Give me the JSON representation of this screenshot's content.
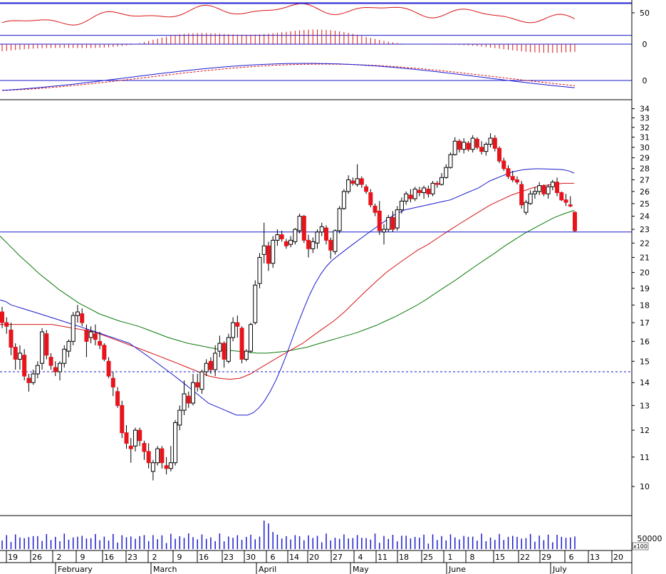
{
  "chart_data": {
    "type": "candlestick",
    "colors": {
      "up_candle": "#ffffff",
      "down_candle": "#e8141c",
      "candle_outline": "#000000",
      "ma_short": "#1a1ad0",
      "ma_mid": "#d81414",
      "ma_long": "#0a7a0a",
      "hline": "#1a1ad0",
      "rsi_line": "#d81414",
      "osc_bars": "#d81414",
      "macd_line": "#1a1ad0",
      "macd_signal": "#d81414",
      "volume": "#1a1ad0"
    },
    "panels": {
      "rsi": {
        "tick_labels": [
          "50"
        ],
        "upper": 62,
        "lower": 30
      },
      "oscillator": {
        "tick_labels": [
          "0"
        ]
      },
      "macd": {
        "tick_labels": [
          "0"
        ]
      },
      "price": {
        "scale": "log",
        "ylim": [
          9.1,
          35
        ],
        "tick_labels": [
          "10",
          "11",
          "12",
          "13",
          "14",
          "15",
          "16",
          "17",
          "18",
          "19",
          "20",
          "21",
          "22",
          "23",
          "24",
          "25",
          "26",
          "27",
          "28",
          "29",
          "30",
          "31",
          "32",
          "33",
          "34"
        ],
        "hlines": [
          22.8
        ],
        "dashed_hlines": [
          14.5
        ]
      },
      "volume": {
        "tick_labels": [
          "50000"
        ],
        "unit_label": "x100"
      }
    },
    "x_axis": {
      "day_labels": [
        "19",
        "26",
        "2",
        "9",
        "16",
        "23",
        "2",
        "9",
        "16",
        "23",
        "30",
        "6",
        "14",
        "20",
        "27",
        "4",
        "11",
        "18",
        "25",
        "1",
        "8",
        "15",
        "22",
        "29",
        "6",
        "13",
        "20"
      ],
      "month_labels": [
        "February",
        "March",
        "April",
        "May",
        "June",
        "July"
      ]
    },
    "candles": [
      [
        17.6,
        17.9,
        16.7,
        17.0
      ],
      [
        17.0,
        17.3,
        16.4,
        16.8
      ],
      [
        16.6,
        17.0,
        15.3,
        15.7
      ],
      [
        15.7,
        15.9,
        14.6,
        15.1
      ],
      [
        15.1,
        15.8,
        14.6,
        15.4
      ],
      [
        15.3,
        15.6,
        14.1,
        14.3
      ],
      [
        14.2,
        14.4,
        13.6,
        14.0
      ],
      [
        14.0,
        14.6,
        13.9,
        14.4
      ],
      [
        14.4,
        15.0,
        14.2,
        14.8
      ],
      [
        14.9,
        16.7,
        14.6,
        16.5
      ],
      [
        16.4,
        16.6,
        15.1,
        15.3
      ],
      [
        15.2,
        15.4,
        14.6,
        14.8
      ],
      [
        14.7,
        15.0,
        14.3,
        14.5
      ],
      [
        14.5,
        15.0,
        14.1,
        14.9
      ],
      [
        14.9,
        15.8,
        14.7,
        15.6
      ],
      [
        15.5,
        16.1,
        15.2,
        16.0
      ],
      [
        16.0,
        17.6,
        15.8,
        17.4
      ],
      [
        17.4,
        18.0,
        17.0,
        17.6
      ],
      [
        17.5,
        17.8,
        16.8,
        17.0
      ],
      [
        16.6,
        16.9,
        15.2,
        16.0
      ],
      [
        16.2,
        16.8,
        15.9,
        16.5
      ],
      [
        16.4,
        16.9,
        15.8,
        16.1
      ],
      [
        16.0,
        16.5,
        15.6,
        15.8
      ],
      [
        15.8,
        15.9,
        15.0,
        15.1
      ],
      [
        15.0,
        15.2,
        14.2,
        14.3
      ],
      [
        14.2,
        14.5,
        13.4,
        13.8
      ],
      [
        13.6,
        13.8,
        12.9,
        13.0
      ],
      [
        13.0,
        13.2,
        11.7,
        11.9
      ],
      [
        11.9,
        12.2,
        11.3,
        11.5
      ],
      [
        11.4,
        11.7,
        10.8,
        11.3
      ],
      [
        11.4,
        12.1,
        11.2,
        12.0
      ],
      [
        12.0,
        12.1,
        11.4,
        11.6
      ],
      [
        11.5,
        11.6,
        10.9,
        11.2
      ],
      [
        11.2,
        11.5,
        10.6,
        10.8
      ],
      [
        10.5,
        10.9,
        10.2,
        10.8
      ],
      [
        10.8,
        11.4,
        10.7,
        11.3
      ],
      [
        11.3,
        11.4,
        10.6,
        10.8
      ],
      [
        10.7,
        11.0,
        10.4,
        10.6
      ],
      [
        10.6,
        11.4,
        10.5,
        10.8
      ],
      [
        10.8,
        12.4,
        10.7,
        12.3
      ],
      [
        12.2,
        13.0,
        12.0,
        12.8
      ],
      [
        12.8,
        14.1,
        12.6,
        13.5
      ],
      [
        13.4,
        13.6,
        12.9,
        13.1
      ],
      [
        13.1,
        14.4,
        13.0,
        14.0
      ],
      [
        14.0,
        14.4,
        13.6,
        13.8
      ],
      [
        13.7,
        14.6,
        13.5,
        14.5
      ],
      [
        14.5,
        15.1,
        14.3,
        14.9
      ],
      [
        15.0,
        15.2,
        14.4,
        14.6
      ],
      [
        14.6,
        15.8,
        14.3,
        15.4
      ],
      [
        15.5,
        16.3,
        15.2,
        15.9
      ],
      [
        15.9,
        16.0,
        14.7,
        15.1
      ],
      [
        15.0,
        16.4,
        14.9,
        16.2
      ],
      [
        16.2,
        17.3,
        16.0,
        17.0
      ],
      [
        17.0,
        17.4,
        16.2,
        16.8
      ],
      [
        16.7,
        16.8,
        14.9,
        15.1
      ],
      [
        15.1,
        15.6,
        15.0,
        15.5
      ],
      [
        15.5,
        17.0,
        15.4,
        16.9
      ],
      [
        17.0,
        19.5,
        16.9,
        19.2
      ],
      [
        19.3,
        21.3,
        19.0,
        21.0
      ],
      [
        21.2,
        23.5,
        20.6,
        21.8
      ],
      [
        21.8,
        22.1,
        20.1,
        20.6
      ],
      [
        20.6,
        22.5,
        20.3,
        22.2
      ],
      [
        22.2,
        23.0,
        21.8,
        22.6
      ],
      [
        22.6,
        22.9,
        22.1,
        22.3
      ],
      [
        22.1,
        22.3,
        21.6,
        21.8
      ],
      [
        21.9,
        22.5,
        21.7,
        22.2
      ],
      [
        22.1,
        23.1,
        21.9,
        23.0
      ],
      [
        22.9,
        24.2,
        22.7,
        24.0
      ],
      [
        24.0,
        24.1,
        22.0,
        22.2
      ],
      [
        22.2,
        22.6,
        21.0,
        21.6
      ],
      [
        21.6,
        22.4,
        21.3,
        22.1
      ],
      [
        22.0,
        23.0,
        21.6,
        22.8
      ],
      [
        22.8,
        23.5,
        22.5,
        23.2
      ],
      [
        23.1,
        23.3,
        21.9,
        22.2
      ],
      [
        22.2,
        22.4,
        20.9,
        21.5
      ],
      [
        21.4,
        23.0,
        21.2,
        22.9
      ],
      [
        22.9,
        24.8,
        22.7,
        24.6
      ],
      [
        24.6,
        26.2,
        24.5,
        26.0
      ],
      [
        26.0,
        27.4,
        25.8,
        27.0
      ],
      [
        26.9,
        27.2,
        26.5,
        26.7
      ],
      [
        26.6,
        28.4,
        26.4,
        27.1
      ],
      [
        27.1,
        27.3,
        26.3,
        26.6
      ],
      [
        26.4,
        26.6,
        25.8,
        26.0
      ],
      [
        25.9,
        26.2,
        24.7,
        24.9
      ],
      [
        24.8,
        25.0,
        24.0,
        24.3
      ],
      [
        24.4,
        25.2,
        22.6,
        22.9
      ],
      [
        22.8,
        23.4,
        21.9,
        23.0
      ],
      [
        23.0,
        24.1,
        22.8,
        23.9
      ],
      [
        23.9,
        24.4,
        22.8,
        23.0
      ],
      [
        23.1,
        24.8,
        22.9,
        24.5
      ],
      [
        24.5,
        25.5,
        24.2,
        25.2
      ],
      [
        25.2,
        26.0,
        24.9,
        25.8
      ],
      [
        25.7,
        26.2,
        25.1,
        25.4
      ],
      [
        25.4,
        26.4,
        25.2,
        26.2
      ],
      [
        26.1,
        26.4,
        25.6,
        25.9
      ],
      [
        25.9,
        26.5,
        25.4,
        26.3
      ],
      [
        26.2,
        26.5,
        25.5,
        25.8
      ],
      [
        25.8,
        26.9,
        25.6,
        26.7
      ],
      [
        26.7,
        26.9,
        26.3,
        26.6
      ],
      [
        26.6,
        27.6,
        26.5,
        27.2
      ],
      [
        27.2,
        28.4,
        27.1,
        28.1
      ],
      [
        28.1,
        29.5,
        28.0,
        29.3
      ],
      [
        29.3,
        31.0,
        29.2,
        30.6
      ],
      [
        30.6,
        30.8,
        29.5,
        29.8
      ],
      [
        29.8,
        30.9,
        29.4,
        30.5
      ],
      [
        30.4,
        30.6,
        29.6,
        29.8
      ],
      [
        29.8,
        31.2,
        29.5,
        30.9
      ],
      [
        30.8,
        31.0,
        29.8,
        30.0
      ],
      [
        30.0,
        30.6,
        29.3,
        29.6
      ],
      [
        29.6,
        30.5,
        29.2,
        30.3
      ],
      [
        30.3,
        31.4,
        30.0,
        30.9
      ],
      [
        30.9,
        31.2,
        29.6,
        29.9
      ],
      [
        29.9,
        30.1,
        28.5,
        28.7
      ],
      [
        28.7,
        29.0,
        27.8,
        28.0
      ],
      [
        28.0,
        28.3,
        27.1,
        27.3
      ],
      [
        27.3,
        27.8,
        26.8,
        27.0
      ],
      [
        27.0,
        27.3,
        26.6,
        26.8
      ],
      [
        26.6,
        26.9,
        24.6,
        24.9
      ],
      [
        24.3,
        25.3,
        24.1,
        25.1
      ],
      [
        25.0,
        26.1,
        24.9,
        25.8
      ],
      [
        25.8,
        26.4,
        25.4,
        26.0
      ],
      [
        26.0,
        26.8,
        25.7,
        26.5
      ],
      [
        26.5,
        26.6,
        25.6,
        25.8
      ],
      [
        25.8,
        26.6,
        25.4,
        26.4
      ],
      [
        26.4,
        27.0,
        26.1,
        26.8
      ],
      [
        26.8,
        27.2,
        25.6,
        25.9
      ],
      [
        25.9,
        26.0,
        25.2,
        25.3
      ],
      [
        25.3,
        25.8,
        24.8,
        25.1
      ],
      [
        24.9,
        25.6,
        24.7,
        24.8
      ],
      [
        24.3,
        24.4,
        22.8,
        22.9
      ]
    ],
    "ma_short": [
      18.3,
      18.2,
      18.0,
      17.9,
      17.8,
      17.7,
      17.6,
      17.5,
      17.4,
      17.3,
      17.2,
      17.1,
      17.0,
      16.9,
      16.8,
      16.7,
      16.6,
      16.5,
      16.4,
      16.3,
      16.2,
      16.1,
      16.0,
      15.9,
      15.7,
      15.5,
      15.3,
      15.1,
      14.9,
      14.7,
      14.5,
      14.3,
      14.1,
      13.9,
      13.7,
      13.5,
      13.3,
      13.1,
      13.0,
      12.9,
      12.8,
      12.7,
      12.6,
      12.6,
      12.6,
      12.7,
      12.9,
      13.2,
      13.6,
      14.1,
      14.7,
      15.4,
      16.2,
      17.0,
      17.8,
      18.6,
      19.3,
      19.9,
      20.4,
      20.8,
      21.1,
      21.4,
      21.7,
      22.0,
      22.3,
      22.6,
      22.9,
      23.2,
      23.5,
      23.8,
      24.1,
      24.3,
      24.5,
      24.6,
      24.7,
      24.8,
      24.9,
      25.0,
      25.1,
      25.2,
      25.3,
      25.5,
      25.7,
      25.9,
      26.1,
      26.3,
      26.6,
      26.9,
      27.1,
      27.3,
      27.5,
      27.7,
      27.8,
      27.9,
      27.95,
      27.98,
      27.98,
      27.97,
      27.95,
      27.93,
      27.9,
      27.8,
      27.6
    ],
    "ma_mid": [
      16.9,
      16.9,
      16.9,
      16.9,
      16.9,
      16.9,
      16.8,
      16.7,
      16.6,
      16.5,
      16.3,
      16.1,
      15.9,
      15.7,
      15.5,
      15.3,
      15.1,
      14.9,
      14.7,
      14.5,
      14.3,
      14.2,
      14.15,
      14.2,
      14.4,
      14.7,
      15.0,
      15.3,
      15.6,
      15.9,
      16.3,
      16.7,
      17.1,
      17.6,
      18.2,
      18.8,
      19.4,
      20.0,
      20.5,
      21.0,
      21.5,
      21.9,
      22.4,
      22.9,
      23.4,
      23.9,
      24.4,
      24.9,
      25.3,
      25.7,
      26.0,
      26.3,
      26.5,
      26.6,
      26.7,
      26.7
    ],
    "ma_long": [
      22.5,
      21.8,
      21.1,
      20.5,
      19.9,
      19.4,
      18.9,
      18.5,
      18.1,
      17.8,
      17.5,
      17.3,
      17.1,
      16.95,
      16.8,
      16.6,
      16.4,
      16.2,
      16.05,
      15.9,
      15.8,
      15.7,
      15.6,
      15.55,
      15.5,
      15.45,
      15.4,
      15.4,
      15.45,
      15.5,
      15.6,
      15.7,
      15.85,
      16.0,
      16.15,
      16.3,
      16.45,
      16.65,
      16.85,
      17.1,
      17.35,
      17.65,
      17.95,
      18.3,
      18.7,
      19.1,
      19.5,
      19.95,
      20.4,
      20.85,
      21.3,
      21.8,
      22.25,
      22.7,
      23.1,
      23.5,
      23.9,
      24.2,
      24.45
    ]
  }
}
